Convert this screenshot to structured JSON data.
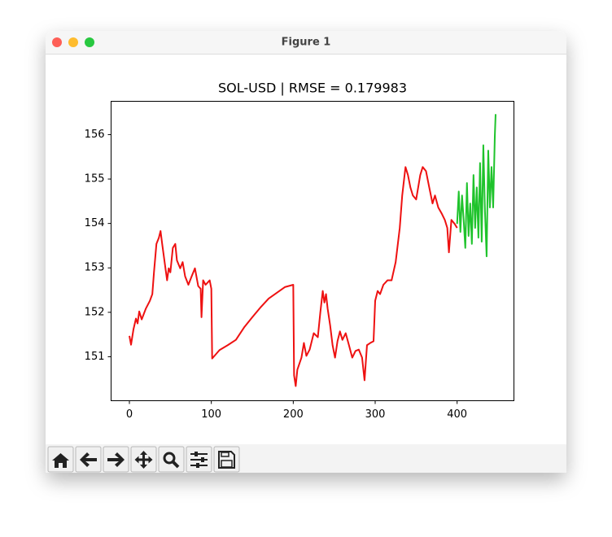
{
  "window": {
    "title": "Figure 1"
  },
  "chart_data": {
    "type": "line",
    "title": "SOL-USD | RMSE = 0.179983",
    "series": [
      {
        "color": "#ee1111",
        "x": [
          0,
          2,
          5,
          8,
          10,
          12,
          15,
          20,
          25,
          28,
          30,
          33,
          36,
          38,
          40,
          44,
          46,
          48,
          50,
          53,
          56,
          58,
          62,
          65,
          68,
          72,
          76,
          80,
          84,
          87,
          88,
          90,
          93,
          98,
          100,
          101,
          110,
          120,
          130,
          140,
          150,
          160,
          170,
          180,
          190,
          200,
          201,
          203,
          205,
          210,
          213,
          216,
          220,
          225,
          230,
          233,
          236,
          238,
          240,
          242,
          245,
          248,
          251,
          254,
          257,
          260,
          264,
          268,
          272,
          276,
          280,
          284,
          287,
          290,
          294,
          298,
          300,
          303,
          306,
          310,
          315,
          320,
          325,
          330,
          333,
          337,
          340,
          343,
          346,
          350,
          355,
          358,
          362,
          366,
          370,
          373,
          377,
          381,
          385,
          388,
          390,
          393,
          397,
          400
        ],
        "values": [
          151.47,
          151.27,
          151.62,
          151.86,
          151.75,
          152.02,
          151.84,
          152.08,
          152.26,
          152.41,
          152.9,
          153.54,
          153.68,
          153.83,
          153.54,
          152.99,
          152.72,
          152.99,
          152.9,
          153.45,
          153.54,
          153.17,
          152.99,
          153.13,
          152.81,
          152.62,
          152.81,
          152.99,
          152.59,
          152.53,
          151.89,
          152.72,
          152.62,
          152.72,
          152.53,
          150.96,
          151.15,
          151.26,
          151.38,
          151.66,
          151.89,
          152.11,
          152.31,
          152.44,
          152.57,
          152.62,
          150.58,
          150.34,
          150.71,
          150.98,
          151.31,
          151.02,
          151.16,
          151.53,
          151.44,
          151.99,
          152.48,
          152.22,
          152.41,
          152.08,
          151.71,
          151.26,
          150.98,
          151.35,
          151.57,
          151.38,
          151.53,
          151.26,
          150.98,
          151.13,
          151.16,
          150.98,
          150.47,
          151.26,
          151.31,
          151.35,
          152.26,
          152.48,
          152.41,
          152.62,
          152.72,
          152.72,
          153.13,
          153.9,
          154.63,
          155.27,
          155.09,
          154.81,
          154.63,
          154.54,
          155.09,
          155.27,
          155.18,
          154.81,
          154.45,
          154.63,
          154.36,
          154.23,
          154.08,
          153.9,
          153.35,
          154.08,
          153.99,
          153.9
        ]
      },
      {
        "color": "#1fc32c",
        "x": [
          400,
          402,
          404,
          406,
          408,
          410,
          412,
          414,
          416,
          418,
          420,
          422,
          424,
          426,
          428,
          430,
          432,
          434,
          436,
          438,
          440,
          442,
          444,
          446,
          447
        ],
        "values": [
          153.99,
          154.72,
          153.81,
          154.63,
          154.08,
          153.45,
          154.91,
          153.72,
          154.45,
          153.54,
          155.09,
          153.9,
          154.81,
          153.68,
          155.36,
          153.59,
          155.76,
          154.27,
          153.26,
          155.64,
          154.36,
          155.27,
          154.36,
          155.95,
          156.46
        ]
      }
    ],
    "xlim": [
      -22.35,
      469.35
    ],
    "xticks": [
      0,
      100,
      200,
      300,
      400
    ],
    "ylim": [
      150.01,
      156.75
    ],
    "yticks": [
      151,
      152,
      153,
      154,
      155,
      156
    ],
    "grid": false
  }
}
